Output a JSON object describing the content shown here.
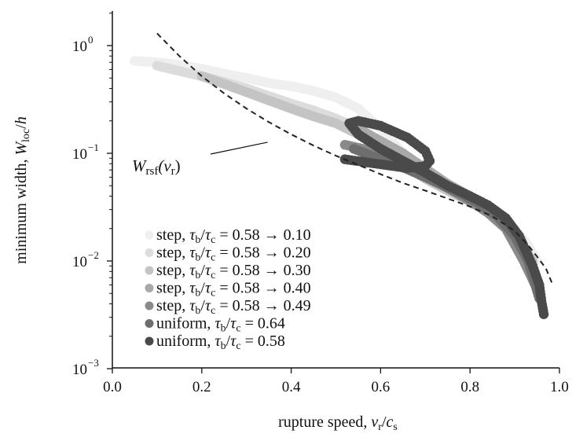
{
  "chart_data": {
    "type": "scatter",
    "title": "",
    "xlabel": "rupture speed, v_r / c_s",
    "ylabel": "minimum width, W_loc / h",
    "xlim": [
      0.0,
      1.0
    ],
    "ylim": [
      0.001,
      2.0
    ],
    "yscale": "log",
    "grid": false,
    "legend_position": "bottom-left",
    "x_ticks": [
      {
        "value": 0.0,
        "label": "0.0"
      },
      {
        "value": 0.2,
        "label": "0.2"
      },
      {
        "value": 0.4,
        "label": "0.4"
      },
      {
        "value": 0.6,
        "label": "0.6"
      },
      {
        "value": 0.8,
        "label": "0.8"
      },
      {
        "value": 1.0,
        "label": "1.0"
      }
    ],
    "y_ticks": [
      {
        "value": 1,
        "base": "10",
        "exp": "0"
      },
      {
        "value": 0.1,
        "base": "10",
        "exp": "−1"
      },
      {
        "value": 0.01,
        "base": "10",
        "exp": "−2"
      },
      {
        "value": 0.001,
        "base": "10",
        "exp": "−3"
      }
    ],
    "annotation": {
      "text_main": "W",
      "text_sub": "rsf",
      "text_arg": "(v",
      "text_arg_sub": "r",
      "text_close": ")",
      "x_anchor": 0.4,
      "y_anchor": 0.145
    },
    "reference_curve": {
      "name": "W_rsf(v_r)",
      "style": "dashed",
      "color": "#222222",
      "x": [
        0.1,
        0.15,
        0.2,
        0.25,
        0.3,
        0.35,
        0.4,
        0.45,
        0.5,
        0.55,
        0.6,
        0.65,
        0.7,
        0.75,
        0.8,
        0.85,
        0.9,
        0.93,
        0.95,
        0.97,
        0.985
      ],
      "y": [
        1.3,
        0.8,
        0.52,
        0.36,
        0.26,
        0.195,
        0.15,
        0.118,
        0.095,
        0.078,
        0.064,
        0.053,
        0.045,
        0.038,
        0.032,
        0.026,
        0.019,
        0.014,
        0.011,
        0.0085,
        0.006
      ]
    },
    "series": [
      {
        "name": "step, τb/τc = 0.58 → 0.10",
        "legend_label": {
          "prefix": "step, ",
          "ratio_num": "τ",
          "ratio_num_sub": "b",
          "ratio_den": "τ",
          "ratio_den_sub": "c",
          "value": " = 0.58 → 0.10"
        },
        "color": "#efefef",
        "x": [
          0.05,
          0.1,
          0.15,
          0.2,
          0.25,
          0.3,
          0.35,
          0.4,
          0.45,
          0.5,
          0.55,
          0.6,
          0.65,
          0.7,
          0.75,
          0.8,
          0.85,
          0.9,
          0.93,
          0.95
        ],
        "y": [
          0.72,
          0.7,
          0.66,
          0.61,
          0.55,
          0.5,
          0.45,
          0.42,
          0.38,
          0.33,
          0.26,
          0.17,
          0.1,
          0.065,
          0.045,
          0.035,
          0.028,
          0.02,
          0.014,
          0.01
        ]
      },
      {
        "name": "step, τb/τc = 0.58 → 0.20",
        "legend_label": {
          "prefix": "step, ",
          "ratio_num": "τ",
          "ratio_num_sub": "b",
          "ratio_den": "τ",
          "ratio_den_sub": "c",
          "value": " = 0.58 → 0.20"
        },
        "color": "#dcdcdc",
        "x": [
          0.1,
          0.15,
          0.2,
          0.25,
          0.3,
          0.35,
          0.4,
          0.45,
          0.5,
          0.55,
          0.6,
          0.65,
          0.7,
          0.75,
          0.8,
          0.85,
          0.9,
          0.94
        ],
        "y": [
          0.65,
          0.58,
          0.52,
          0.46,
          0.4,
          0.34,
          0.29,
          0.25,
          0.21,
          0.17,
          0.12,
          0.085,
          0.06,
          0.045,
          0.036,
          0.028,
          0.018,
          0.01
        ]
      },
      {
        "name": "step, τb/τc = 0.58 → 0.30",
        "legend_label": {
          "prefix": "step, ",
          "ratio_num": "τ",
          "ratio_num_sub": "b",
          "ratio_den": "τ",
          "ratio_den_sub": "c",
          "value": " = 0.58 → 0.30"
        },
        "color": "#c4c4c4",
        "x": [
          0.2,
          0.25,
          0.3,
          0.35,
          0.4,
          0.45,
          0.5,
          0.55,
          0.6,
          0.65,
          0.7,
          0.75,
          0.8,
          0.85,
          0.9,
          0.94
        ],
        "y": [
          0.52,
          0.44,
          0.37,
          0.31,
          0.26,
          0.22,
          0.19,
          0.15,
          0.11,
          0.08,
          0.058,
          0.045,
          0.036,
          0.028,
          0.018,
          0.01
        ]
      },
      {
        "name": "step, τb/τc = 0.58 → 0.40",
        "legend_label": {
          "prefix": "step, ",
          "ratio_num": "τ",
          "ratio_num_sub": "b",
          "ratio_den": "τ",
          "ratio_den_sub": "c",
          "value": " = 0.58 → 0.40"
        },
        "color": "#a8a8a8",
        "x": [
          0.55,
          0.6,
          0.65,
          0.7,
          0.75,
          0.8,
          0.85,
          0.9,
          0.94
        ],
        "y": [
          0.17,
          0.13,
          0.1,
          0.072,
          0.052,
          0.04,
          0.03,
          0.018,
          0.0075
        ]
      },
      {
        "name": "step, τb/τc = 0.58 → 0.49",
        "legend_label": {
          "prefix": "step, ",
          "ratio_num": "τ",
          "ratio_num_sub": "b",
          "ratio_den": "τ",
          "ratio_den_sub": "c",
          "value": " = 0.58 → 0.49"
        },
        "color": "#8a8a8a",
        "x": [
          0.52,
          0.56,
          0.6,
          0.64,
          0.68,
          0.72,
          0.76,
          0.8,
          0.84,
          0.88,
          0.92,
          0.95
        ],
        "y": [
          0.12,
          0.11,
          0.095,
          0.082,
          0.068,
          0.056,
          0.045,
          0.036,
          0.028,
          0.02,
          0.01,
          0.0055
        ]
      },
      {
        "name": "uniform, τb/τc = 0.64",
        "legend_label": {
          "prefix": "uniform, ",
          "ratio_num": "τ",
          "ratio_num_sub": "b",
          "ratio_den": "τ",
          "ratio_den_sub": "c",
          "value": " = 0.64"
        },
        "color": "#6e6e6e",
        "x": [
          0.54,
          0.58,
          0.62,
          0.66,
          0.7,
          0.74,
          0.78,
          0.82,
          0.86,
          0.9,
          0.93,
          0.955
        ],
        "y": [
          0.11,
          0.095,
          0.083,
          0.071,
          0.06,
          0.05,
          0.042,
          0.034,
          0.026,
          0.017,
          0.01,
          0.0045
        ]
      },
      {
        "name": "uniform, τb/τc = 0.58",
        "legend_label": {
          "prefix": "uniform, ",
          "ratio_num": "τ",
          "ratio_num_sub": "b",
          "ratio_den": "τ",
          "ratio_den_sub": "c",
          "value": " = 0.58"
        },
        "color": "#4a4a4a",
        "x": [
          0.52,
          0.6,
          0.66,
          0.7,
          0.71,
          0.7,
          0.66,
          0.6,
          0.55,
          0.53,
          0.55,
          0.6,
          0.65,
          0.7,
          0.75,
          0.8,
          0.84,
          0.88,
          0.91,
          0.94,
          0.955,
          0.96,
          0.965
        ],
        "y": [
          0.088,
          0.079,
          0.073,
          0.076,
          0.085,
          0.105,
          0.14,
          0.18,
          0.2,
          0.19,
          0.15,
          0.11,
          0.085,
          0.066,
          0.05,
          0.04,
          0.033,
          0.025,
          0.017,
          0.009,
          0.006,
          0.0042,
          0.0032
        ]
      }
    ]
  }
}
